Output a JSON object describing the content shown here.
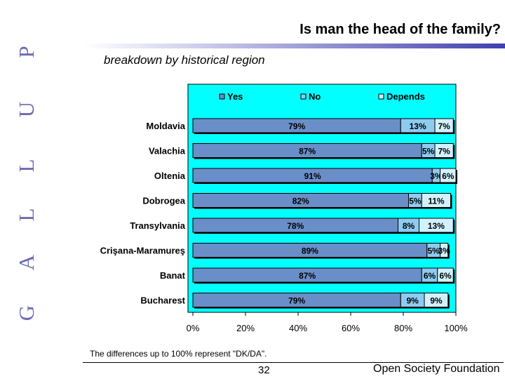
{
  "header": {
    "title": "Is man the head of the family?",
    "subtitle": "breakdown by historical region",
    "brand_letters": [
      "G",
      "A",
      "L",
      "L",
      "U",
      "P"
    ]
  },
  "footer": {
    "note": "The differences up to 100% represent \"DK/DA\".",
    "page_number": "32",
    "organization": "Open Society Foundation"
  },
  "colors": {
    "chart_background": "#00ffff",
    "yes": "#6a8ec8",
    "no": "#8ecbf0",
    "depends": "#d2f1ff",
    "brand": "#6b6bb0"
  },
  "chart_data": {
    "type": "bar",
    "orientation": "horizontal",
    "stacked": true,
    "categories": [
      "Moldavia",
      "Valachia",
      "Oltenia",
      "Dobrogea",
      "Transylvania",
      "Crişana-Maramureş",
      "Banat",
      "Bucharest"
    ],
    "series": [
      {
        "name": "Yes",
        "values": [
          79,
          87,
          91,
          82,
          78,
          89,
          87,
          79
        ],
        "labels": [
          "79%",
          "87%",
          "91%",
          "82%",
          "78%",
          "89%",
          "87%",
          "79%"
        ]
      },
      {
        "name": "No",
        "values": [
          13,
          5,
          3,
          5,
          8,
          5,
          6,
          9
        ],
        "labels": [
          "13%",
          "5%",
          "3%",
          "5%",
          "8%",
          "5%",
          "6%",
          "9%"
        ]
      },
      {
        "name": "Depends",
        "values": [
          7,
          7,
          6,
          11,
          13,
          3,
          6,
          9
        ],
        "labels": [
          "7%",
          "7%",
          "6%",
          "11%",
          "13%",
          "3%",
          "6%",
          "9%"
        ]
      }
    ],
    "xlim": [
      0,
      100
    ],
    "xticks": [
      "0%",
      "20%",
      "40%",
      "60%",
      "80%",
      "100%"
    ],
    "legend_position": "top",
    "grid": false
  }
}
